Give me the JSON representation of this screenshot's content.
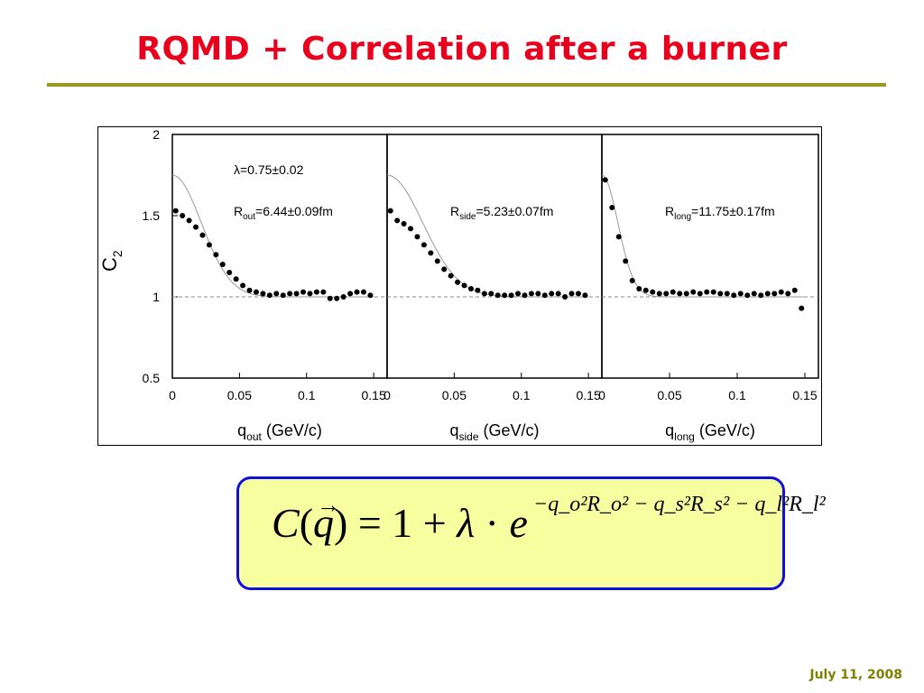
{
  "slide": {
    "title": "RQMD + Correlation after a burner",
    "footer_date": "July 11, 2008"
  },
  "colors": {
    "title": "#e8001c",
    "rule": "#999a1e",
    "formula_border": "#1010d8",
    "formula_fill": "#f6fea0",
    "footer": "#808000"
  },
  "formula": {
    "lhs": "C(q) = 1 + λ · e",
    "exponent": "−q_o²R_o² − q_s²R_s² − q_l²R_l²",
    "parts": {
      "C": "C",
      "open": "(",
      "q": "q",
      "arrow": "→",
      "close": ")",
      "eq": " = 1 + ",
      "lambda": "λ",
      "dot": " · ",
      "e": "e"
    }
  },
  "chart_data": {
    "type": "scatter",
    "ylabel": "C",
    "ylabel_sub": "2",
    "ylim": [
      0.5,
      2
    ],
    "yticks": [
      "0.5",
      "1",
      "1.5",
      "2"
    ],
    "ytick_values": [
      0.5,
      1,
      1.5,
      2
    ],
    "xlim": [
      0,
      0.16
    ],
    "xticks": [
      "0",
      "0.05",
      "0.1",
      "0.15"
    ],
    "xtick_values": [
      0,
      0.05,
      0.1,
      0.15
    ],
    "reference_line": 1,
    "panels": [
      {
        "xlabel_main": "q",
        "xlabel_sub": "out",
        "xlabel_unit": " (GeV/c)",
        "annotations": [
          {
            "text": "λ=0.75±0.02"
          },
          {
            "main": "R",
            "sub": "out",
            "rest": "=6.44±0.09fm"
          }
        ],
        "fit": {
          "lambda": 0.75,
          "R_fm": 6.44
        },
        "x": [
          0.0025,
          0.0075,
          0.0125,
          0.0175,
          0.0225,
          0.0275,
          0.0325,
          0.0375,
          0.0425,
          0.0475,
          0.0525,
          0.0575,
          0.0625,
          0.0675,
          0.0725,
          0.0775,
          0.0825,
          0.0875,
          0.0925,
          0.0975,
          0.1025,
          0.1075,
          0.1125,
          0.1175,
          0.1225,
          0.1275,
          0.1325,
          0.1375,
          0.1425,
          0.1475
        ],
        "y": [
          1.53,
          1.5,
          1.47,
          1.43,
          1.38,
          1.32,
          1.26,
          1.2,
          1.15,
          1.11,
          1.07,
          1.04,
          1.03,
          1.02,
          1.01,
          1.02,
          1.01,
          1.02,
          1.02,
          1.03,
          1.02,
          1.03,
          1.03,
          0.99,
          0.99,
          1.0,
          1.02,
          1.03,
          1.03,
          1.01
        ]
      },
      {
        "xlabel_main": "q",
        "xlabel_sub": "side",
        "xlabel_unit": " (GeV/c)",
        "annotations": [
          {
            "main": "R",
            "sub": "side",
            "rest": "=5.23±0.07fm"
          }
        ],
        "fit": {
          "lambda": 0.75,
          "R_fm": 5.23
        },
        "x": [
          0.0025,
          0.0075,
          0.0125,
          0.0175,
          0.0225,
          0.0275,
          0.0325,
          0.0375,
          0.0425,
          0.0475,
          0.0525,
          0.0575,
          0.0625,
          0.0675,
          0.0725,
          0.0775,
          0.0825,
          0.0875,
          0.0925,
          0.0975,
          0.1025,
          0.1075,
          0.1125,
          0.1175,
          0.1225,
          0.1275,
          0.1325,
          0.1375,
          0.1425,
          0.1475
        ],
        "y": [
          1.53,
          1.47,
          1.45,
          1.42,
          1.37,
          1.32,
          1.27,
          1.22,
          1.17,
          1.13,
          1.09,
          1.07,
          1.05,
          1.04,
          1.02,
          1.02,
          1.01,
          1.01,
          1.01,
          1.02,
          1.01,
          1.02,
          1.02,
          1.01,
          1.02,
          1.02,
          1.0,
          1.02,
          1.02,
          1.01
        ]
      },
      {
        "xlabel_main": "q",
        "xlabel_sub": "long",
        "xlabel_unit": " (GeV/c)",
        "annotations": [
          {
            "main": "R",
            "sub": "long",
            "rest": "=11.75±0.17fm"
          }
        ],
        "fit": {
          "lambda": 0.75,
          "R_fm": 11.75
        },
        "x": [
          0.0025,
          0.0075,
          0.0125,
          0.0175,
          0.0225,
          0.0275,
          0.0325,
          0.0375,
          0.0425,
          0.0475,
          0.0525,
          0.0575,
          0.0625,
          0.0675,
          0.0725,
          0.0775,
          0.0825,
          0.0875,
          0.0925,
          0.0975,
          0.1025,
          0.1075,
          0.1125,
          0.1175,
          0.1225,
          0.1275,
          0.1325,
          0.1375,
          0.1425,
          0.1475
        ],
        "y": [
          1.72,
          1.55,
          1.37,
          1.22,
          1.1,
          1.05,
          1.04,
          1.03,
          1.02,
          1.02,
          1.03,
          1.02,
          1.02,
          1.03,
          1.02,
          1.03,
          1.03,
          1.02,
          1.02,
          1.01,
          1.02,
          1.01,
          1.02,
          1.01,
          1.02,
          1.02,
          1.03,
          1.02,
          1.04,
          0.93
        ]
      }
    ]
  }
}
